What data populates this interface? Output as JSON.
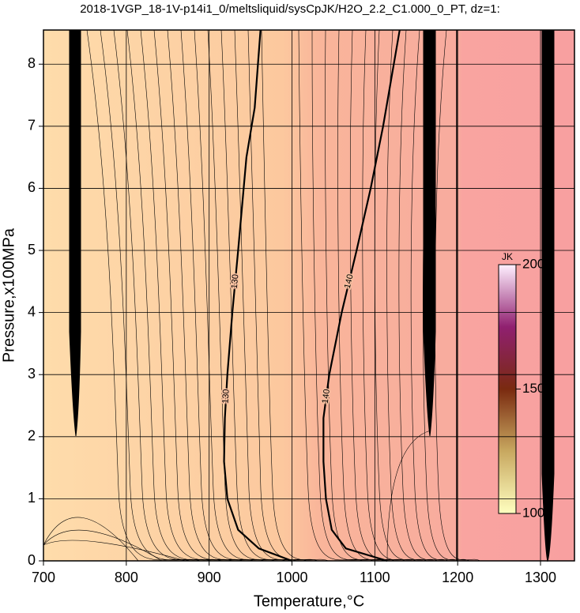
{
  "chart_data": {
    "type": "contour",
    "title": "2018-1VGP_18-1V-p14i1_0/meltsliquid/sysCpJK/H2O_2.2_C1.000_0_PT, dz=1:",
    "x_label": "Temperature,°C",
    "y_label": "Pressure,x100MPa",
    "xlim": [
      700,
      1341
    ],
    "ylim": [
      0,
      8.55
    ],
    "xticks": [
      700,
      800,
      900,
      1000,
      1100,
      1200,
      1300
    ],
    "yticks": [
      0,
      1,
      2,
      3,
      4,
      5,
      6,
      7,
      8
    ],
    "grid": true,
    "contours": [
      {
        "level": 130,
        "x": [
          1000,
          960,
          935,
          922,
          918,
          919,
          922,
          928,
          935,
          945,
          955,
          962
        ],
        "y": [
          0,
          0.2,
          0.5,
          1.0,
          1.6,
          2.3,
          3,
          4,
          5,
          6.5,
          7.3,
          8.55
        ]
      },
      {
        "level": 140,
        "x": [
          1115,
          1065,
          1048,
          1041,
          1038,
          1038,
          1045,
          1060,
          1078,
          1095,
          1110,
          1130
        ],
        "y": [
          0,
          0.2,
          0.5,
          1.0,
          1.6,
          2.3,
          3,
          4,
          5,
          6,
          7,
          8.55
        ]
      }
    ],
    "colorbar": {
      "label": "JK",
      "lim": [
        100,
        200
      ],
      "ticks": [
        100,
        150,
        200
      ]
    }
  }
}
